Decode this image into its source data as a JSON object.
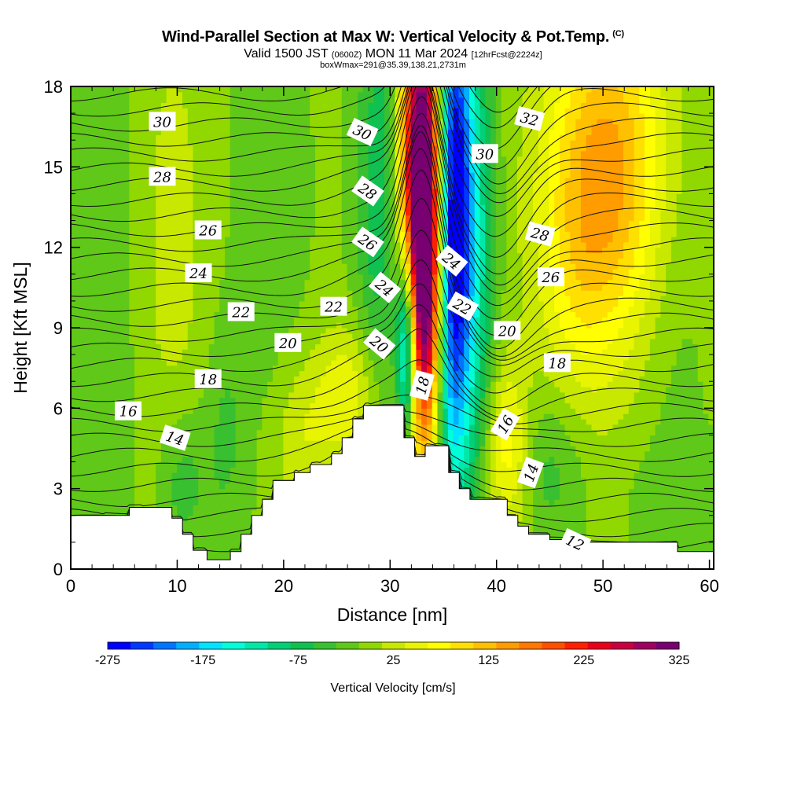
{
  "header": {
    "title": "Wind-Parallel Section at Max W: Vertical Velocity & Pot.Temp.",
    "copyright_mark": "(C)",
    "valid_prefix": "Valid 1500 JST",
    "valid_zulu": "(0600Z)",
    "valid_date": "MON 11 Mar 2024",
    "forecast": "[12hrFcst@2224z]",
    "box_info": "boxWmax=291@35.39,138.21,2731m"
  },
  "chart_data": {
    "type": "heatmap",
    "title": "Wind-Parallel Section at Max W: Vertical Velocity & Pot.Temp.",
    "xlabel": "Distance [nm]",
    "ylabel": "Height [Kft MSL]",
    "xlim": [
      0,
      60.4
    ],
    "ylim": [
      0,
      18
    ],
    "x_ticks": [
      0,
      10,
      20,
      30,
      40,
      50,
      60
    ],
    "y_ticks": [
      0,
      3,
      6,
      9,
      12,
      15,
      18
    ],
    "colorbar": {
      "label": "Vertical Velocity [cm/s]",
      "min": -275,
      "max": 325,
      "step": 25,
      "tick_labels": [
        "-275",
        "-175",
        "-75",
        "25",
        "125",
        "225",
        "325"
      ],
      "tick_values": [
        -275,
        -175,
        -75,
        25,
        125,
        225,
        325
      ],
      "colors": [
        "#0000ff",
        "#0038ff",
        "#0074ff",
        "#00b0ff",
        "#00e4ff",
        "#00ffd8",
        "#00e8a8",
        "#00d078",
        "#10c050",
        "#38c030",
        "#60c818",
        "#90d800",
        "#c8e800",
        "#e8f400",
        "#ffff00",
        "#ffe000",
        "#ffc000",
        "#ff9c00",
        "#ff7800",
        "#ff5000",
        "#ff2000",
        "#e8001c",
        "#c80040",
        "#a00060",
        "#780070"
      ]
    },
    "terrain_profile": [
      [
        0,
        2.0
      ],
      [
        5.5,
        2.0
      ],
      [
        5.5,
        2.3
      ],
      [
        9.5,
        2.3
      ],
      [
        9.5,
        1.9
      ],
      [
        10.5,
        1.9
      ],
      [
        10.5,
        1.3
      ],
      [
        11.5,
        1.3
      ],
      [
        11.5,
        0.7
      ],
      [
        12.8,
        0.7
      ],
      [
        12.8,
        0.35
      ],
      [
        15.0,
        0.35
      ],
      [
        15.0,
        0.65
      ],
      [
        16.0,
        0.65
      ],
      [
        16.0,
        1.3
      ],
      [
        17.0,
        1.3
      ],
      [
        17.0,
        2.0
      ],
      [
        18.0,
        2.0
      ],
      [
        18.0,
        2.6
      ],
      [
        19.0,
        2.6
      ],
      [
        19.0,
        3.3
      ],
      [
        21.0,
        3.3
      ],
      [
        21.0,
        3.6
      ],
      [
        22.5,
        3.6
      ],
      [
        22.5,
        3.9
      ],
      [
        24.5,
        3.9
      ],
      [
        24.5,
        4.3
      ],
      [
        25.5,
        4.3
      ],
      [
        25.5,
        4.9
      ],
      [
        26.5,
        4.9
      ],
      [
        26.5,
        5.6
      ],
      [
        27.5,
        5.6
      ],
      [
        27.5,
        6.1
      ],
      [
        31.3,
        6.1
      ],
      [
        31.3,
        4.9
      ],
      [
        32.3,
        4.9
      ],
      [
        32.3,
        4.2
      ],
      [
        33.3,
        4.2
      ],
      [
        33.3,
        4.6
      ],
      [
        35.5,
        4.6
      ],
      [
        35.5,
        3.6
      ],
      [
        36.5,
        3.6
      ],
      [
        36.5,
        3.0
      ],
      [
        37.5,
        3.0
      ],
      [
        37.5,
        2.6
      ],
      [
        41.0,
        2.6
      ],
      [
        41.0,
        2.0
      ],
      [
        42.0,
        2.0
      ],
      [
        42.0,
        1.6
      ],
      [
        43.0,
        1.6
      ],
      [
        43.0,
        1.3
      ],
      [
        45.0,
        1.3
      ],
      [
        45.0,
        1.1
      ],
      [
        47.5,
        1.1
      ],
      [
        47.5,
        1.0
      ],
      [
        57.0,
        1.0
      ],
      [
        57.0,
        0.65
      ],
      [
        60.4,
        0.65
      ]
    ],
    "velocity_features": [
      {
        "x": 33.0,
        "y": 14.0,
        "sx": 1.4,
        "sy": 5.5,
        "w": 420
      },
      {
        "x": 33.3,
        "y": 9.5,
        "sx": 1.1,
        "sy": 4.0,
        "w": 120
      },
      {
        "x": 35.9,
        "y": 13.0,
        "sx": 1.2,
        "sy": 7.0,
        "w": -320
      },
      {
        "x": 31.6,
        "y": 8.5,
        "sx": 0.7,
        "sy": 2.6,
        "w": -260
      },
      {
        "x": 38.2,
        "y": 12.0,
        "sx": 1.3,
        "sy": 6.5,
        "w": -95
      },
      {
        "x": 29.2,
        "y": 14.0,
        "sx": 1.6,
        "sy": 6.0,
        "w": -80
      },
      {
        "x": 50.5,
        "y": 15.0,
        "sx": 4.0,
        "sy": 4.5,
        "w": 150
      },
      {
        "x": 47.5,
        "y": 10.5,
        "sx": 2.8,
        "sy": 4.0,
        "w": 45
      },
      {
        "x": 41.0,
        "y": 4.5,
        "sx": 1.5,
        "sy": 2.3,
        "w": 90
      },
      {
        "x": 45.0,
        "y": 3.8,
        "sx": 2.4,
        "sy": 2.2,
        "w": -45
      },
      {
        "x": 26.0,
        "y": 6.5,
        "sx": 2.2,
        "sy": 1.8,
        "w": 70
      },
      {
        "x": 21.5,
        "y": 4.8,
        "sx": 1.8,
        "sy": 2.0,
        "w": 40
      },
      {
        "x": 10.5,
        "y": 3.2,
        "sx": 1.6,
        "sy": 2.0,
        "w": -50
      },
      {
        "x": 14.5,
        "y": 5.0,
        "sx": 1.4,
        "sy": 3.0,
        "w": -35
      },
      {
        "x": 9.5,
        "y": 12.0,
        "sx": 2.5,
        "sy": 7.0,
        "w": 30
      },
      {
        "x": 3.0,
        "y": 10.0,
        "sx": 2.5,
        "sy": 8.0,
        "w": -25
      },
      {
        "x": 18.5,
        "y": 14.0,
        "sx": 2.5,
        "sy": 6.0,
        "w": -22
      },
      {
        "x": 56.5,
        "y": 11.0,
        "sx": 2.2,
        "sy": 6.0,
        "w": -20
      },
      {
        "x": 57.0,
        "y": 2.5,
        "sx": 3.5,
        "sy": 1.6,
        "w": -18
      }
    ],
    "velocity_background": 5,
    "pot_temp_contour_labels": [
      {
        "text": "30",
        "x": 8.6,
        "y": 16.7,
        "angle": 0
      },
      {
        "text": "28",
        "x": 8.6,
        "y": 14.65,
        "angle": 0
      },
      {
        "text": "26",
        "x": 12.9,
        "y": 12.65,
        "angle": 0
      },
      {
        "text": "24",
        "x": 12.0,
        "y": 11.05,
        "angle": 0
      },
      {
        "text": "22",
        "x": 16.0,
        "y": 9.6,
        "angle": 0
      },
      {
        "text": "20",
        "x": 20.4,
        "y": 8.45,
        "angle": 0
      },
      {
        "text": "18",
        "x": 12.9,
        "y": 7.1,
        "angle": 0
      },
      {
        "text": "16",
        "x": 5.4,
        "y": 5.9,
        "angle": 0
      },
      {
        "text": "14",
        "x": 9.8,
        "y": 4.9,
        "angle": 18
      },
      {
        "text": "30",
        "x": 27.4,
        "y": 16.3,
        "angle": 25
      },
      {
        "text": "28",
        "x": 27.9,
        "y": 14.1,
        "angle": 35
      },
      {
        "text": "26",
        "x": 27.9,
        "y": 12.2,
        "angle": 35
      },
      {
        "text": "24",
        "x": 29.5,
        "y": 10.5,
        "angle": 40
      },
      {
        "text": "22",
        "x": 24.7,
        "y": 9.8,
        "angle": 0
      },
      {
        "text": "20",
        "x": 29.0,
        "y": 8.4,
        "angle": 40
      },
      {
        "text": "18",
        "x": 33.0,
        "y": 6.85,
        "angle": -75
      },
      {
        "text": "24",
        "x": 35.8,
        "y": 11.5,
        "angle": 40
      },
      {
        "text": "22",
        "x": 36.8,
        "y": 9.8,
        "angle": 30
      },
      {
        "text": "20",
        "x": 41.0,
        "y": 8.9,
        "angle": 0
      },
      {
        "text": "18",
        "x": 45.7,
        "y": 7.7,
        "angle": 0
      },
      {
        "text": "16",
        "x": 40.8,
        "y": 5.4,
        "angle": -60
      },
      {
        "text": "14",
        "x": 43.2,
        "y": 3.6,
        "angle": -70
      },
      {
        "text": "12",
        "x": 47.4,
        "y": 1.0,
        "angle": 25
      },
      {
        "text": "30",
        "x": 38.9,
        "y": 15.5,
        "angle": 0
      },
      {
        "text": "32",
        "x": 43.1,
        "y": 16.8,
        "angle": 15
      },
      {
        "text": "28",
        "x": 44.1,
        "y": 12.5,
        "angle": 15
      },
      {
        "text": "26",
        "x": 45.1,
        "y": 10.9,
        "angle": 0
      }
    ]
  }
}
